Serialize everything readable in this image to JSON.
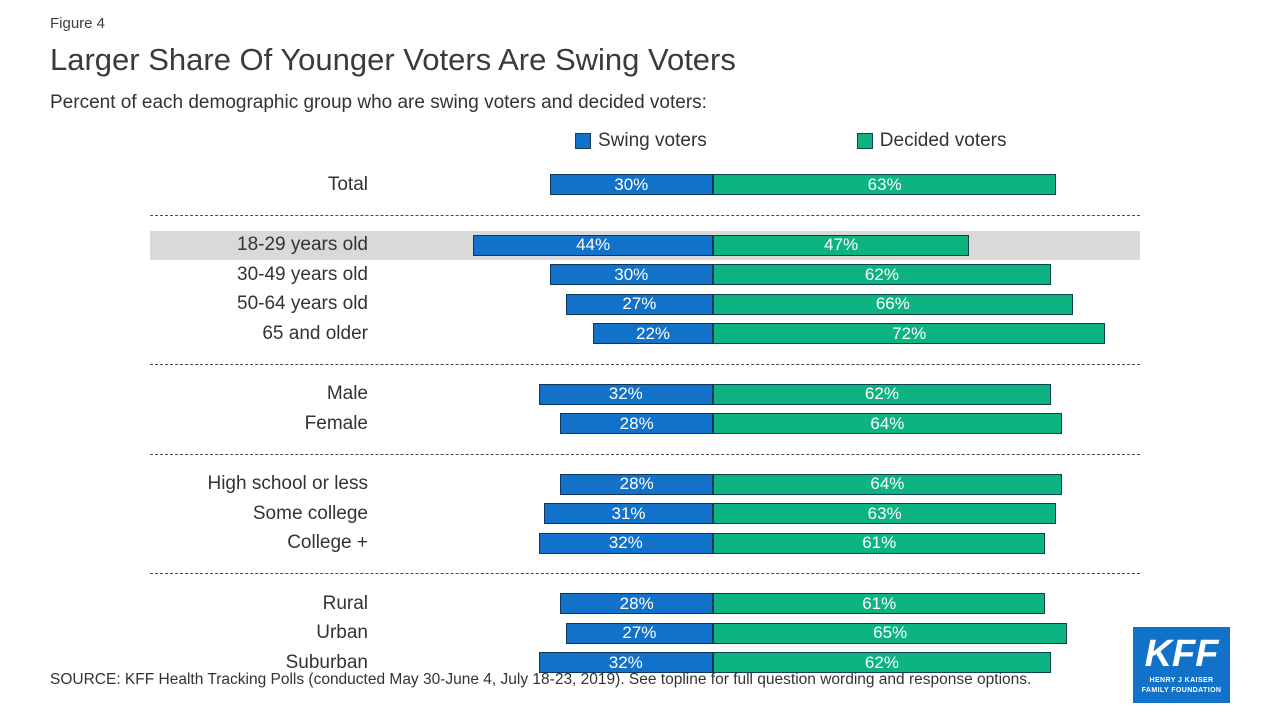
{
  "figure_label": "Figure 4",
  "title": "Larger Share Of Younger Voters Are Swing Voters",
  "subtitle": "Percent of each demographic group who are swing voters and decided voters:",
  "colors": {
    "swing": "#1272CA",
    "decided": "#0DB481",
    "highlight_band": "#d9d9d9",
    "logo_background": "#1272CA"
  },
  "legend": [
    {
      "label": "Swing voters",
      "color": "#1272CA"
    },
    {
      "label": "Decided voters",
      "color": "#0DB481"
    }
  ],
  "chart_data": {
    "type": "bar",
    "orientation": "horizontal-diverging-stacked",
    "value_suffix": "%",
    "series": [
      {
        "name": "Swing voters",
        "color": "#1272CA"
      },
      {
        "name": "Decided voters",
        "color": "#0DB481"
      }
    ],
    "groups": [
      {
        "rows": [
          {
            "label": "Total",
            "swing": 30,
            "decided": 63
          }
        ]
      },
      {
        "rows": [
          {
            "label": "18-29 years old",
            "swing": 44,
            "decided": 47,
            "highlight": true
          },
          {
            "label": "30-49 years old",
            "swing": 30,
            "decided": 62
          },
          {
            "label": "50-64 years old",
            "swing": 27,
            "decided": 66
          },
          {
            "label": "65 and older",
            "swing": 22,
            "decided": 72
          }
        ]
      },
      {
        "rows": [
          {
            "label": "Male",
            "swing": 32,
            "decided": 62
          },
          {
            "label": "Female",
            "swing": 28,
            "decided": 64
          }
        ]
      },
      {
        "rows": [
          {
            "label": "High school or less",
            "swing": 28,
            "decided": 64
          },
          {
            "label": "Some college",
            "swing": 31,
            "decided": 63
          },
          {
            "label": "College +",
            "swing": 32,
            "decided": 61
          }
        ]
      },
      {
        "rows": [
          {
            "label": "Rural",
            "swing": 28,
            "decided": 61
          },
          {
            "label": "Urban",
            "swing": 27,
            "decided": 65
          },
          {
            "label": "Suburban",
            "swing": 32,
            "decided": 62
          }
        ]
      }
    ]
  },
  "source": "SOURCE: KFF Health Tracking Polls (conducted May 30-June 4, July 18-23, 2019). See topline for full question wording and response options.",
  "logo": {
    "text": "KFF",
    "line1": "HENRY J KAISER",
    "line2": "FAMILY FOUNDATION"
  }
}
